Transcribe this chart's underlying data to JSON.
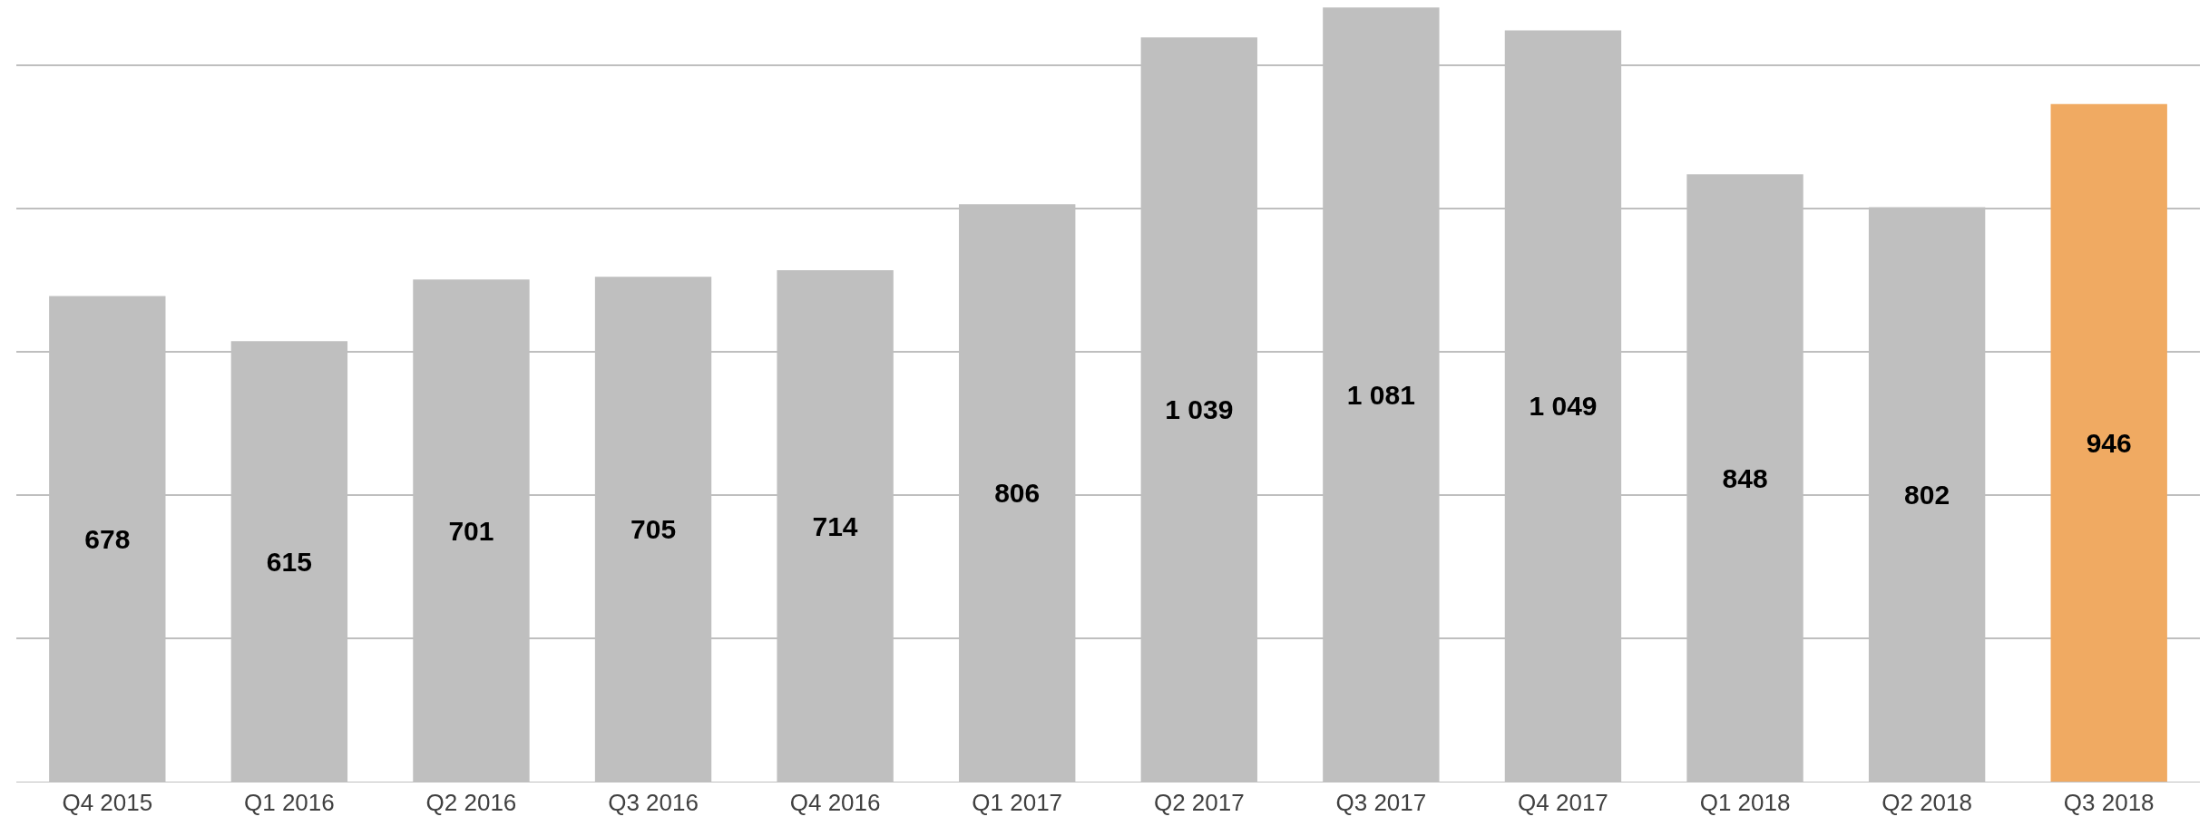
{
  "chart_data": {
    "type": "bar",
    "categories": [
      "Q4 2015",
      "Q1 2016",
      "Q2 2016",
      "Q3 2016",
      "Q4 2016",
      "Q1 2017",
      "Q2 2017",
      "Q3 2017",
      "Q4 2017",
      "Q1 2018",
      "Q2 2018",
      "Q3 2018"
    ],
    "values": [
      678,
      615,
      701,
      705,
      714,
      806,
      1039,
      1081,
      1049,
      848,
      802,
      946
    ],
    "value_labels": [
      "678",
      "615",
      "701",
      "705",
      "714",
      "806",
      "1 039",
      "1 081",
      "1 049",
      "848",
      "802",
      "946"
    ],
    "colors": [
      "#bfbfbf",
      "#bfbfbf",
      "#bfbfbf",
      "#bfbfbf",
      "#bfbfbf",
      "#bfbfbf",
      "#bfbfbf",
      "#bfbfbf",
      "#bfbfbf",
      "#bfbfbf",
      "#bfbfbf",
      "#f0aa62"
    ],
    "ylim": [
      0,
      1085
    ],
    "yticks": [
      {
        "value": 0,
        "label": null
      },
      {
        "value": 200,
        "label": null
      },
      {
        "value": 400,
        "label": null
      },
      {
        "value": 600,
        "label": null
      },
      {
        "value": 800,
        "label": null
      },
      {
        "value": 1000,
        "label": null
      }
    ],
    "grid": "y",
    "tick_labels": "x",
    "legend": false
  }
}
